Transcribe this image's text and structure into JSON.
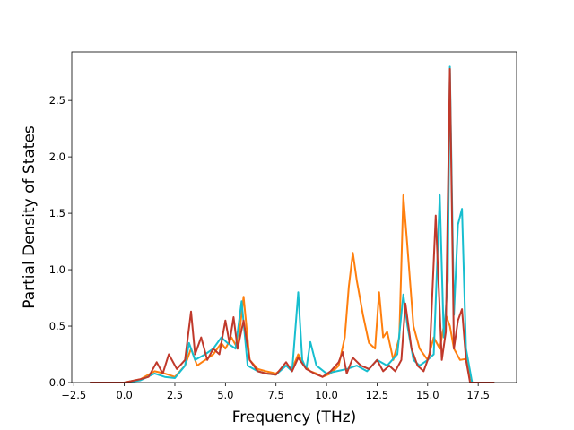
{
  "chart_data": {
    "type": "line",
    "title": "",
    "xlabel": "Frequency (THz)",
    "ylabel": "Partial Density of States",
    "xlim": [
      -2.6,
      19.4
    ],
    "ylim": [
      0.0,
      2.93
    ],
    "xticks": [
      -2.5,
      0.0,
      2.5,
      5.0,
      7.5,
      10.0,
      12.5,
      15.0,
      17.5
    ],
    "xtick_labels": [
      "−2.5",
      "0.0",
      "2.5",
      "5.0",
      "7.5",
      "10.0",
      "12.5",
      "15.0",
      "17.5"
    ],
    "yticks": [
      0.0,
      0.5,
      1.0,
      1.5,
      2.0,
      2.5
    ],
    "ytick_labels": [
      "0.0",
      "0.5",
      "1.0",
      "1.5",
      "2.0",
      "2.5"
    ],
    "grid": false,
    "legend": "none",
    "series": [
      {
        "color": "#ff7f0e",
        "x": [
          -1.7,
          0.0,
          0.8,
          1.5,
          2.0,
          2.5,
          3.0,
          3.3,
          3.6,
          4.0,
          4.4,
          4.8,
          5.0,
          5.3,
          5.6,
          5.9,
          6.2,
          6.6,
          7.0,
          7.5,
          8.0,
          8.3,
          8.6,
          8.9,
          9.2,
          9.5,
          9.8,
          10.2,
          10.6,
          10.9,
          11.1,
          11.3,
          11.5,
          11.8,
          12.1,
          12.4,
          12.6,
          12.8,
          13.0,
          13.3,
          13.6,
          13.8,
          14.0,
          14.3,
          14.6,
          15.0,
          15.3,
          15.6,
          15.9,
          16.1,
          16.3,
          16.6,
          16.9,
          17.2,
          17.6,
          18.3
        ],
        "y": [
          0.0,
          0.0,
          0.03,
          0.1,
          0.08,
          0.05,
          0.15,
          0.3,
          0.15,
          0.2,
          0.25,
          0.35,
          0.3,
          0.4,
          0.3,
          0.76,
          0.2,
          0.12,
          0.1,
          0.08,
          0.15,
          0.12,
          0.25,
          0.15,
          0.1,
          0.08,
          0.05,
          0.08,
          0.15,
          0.4,
          0.85,
          1.15,
          0.9,
          0.6,
          0.35,
          0.3,
          0.8,
          0.4,
          0.45,
          0.2,
          0.4,
          1.66,
          1.2,
          0.5,
          0.3,
          0.2,
          0.4,
          0.3,
          0.6,
          0.5,
          0.3,
          0.2,
          0.21,
          0.0,
          0.0,
          0.0
        ]
      },
      {
        "color": "#17becf",
        "x": [
          -1.7,
          0.0,
          0.8,
          1.5,
          2.0,
          2.5,
          3.0,
          3.2,
          3.5,
          4.0,
          4.4,
          4.8,
          5.1,
          5.5,
          5.8,
          6.1,
          6.6,
          7.0,
          7.5,
          8.0,
          8.3,
          8.6,
          8.8,
          9.0,
          9.2,
          9.5,
          10.0,
          10.5,
          11.0,
          11.5,
          12.0,
          12.5,
          13.0,
          13.5,
          13.8,
          14.0,
          14.3,
          14.6,
          15.0,
          15.3,
          15.6,
          15.8,
          16.0,
          16.1,
          16.3,
          16.5,
          16.7,
          16.9,
          17.2,
          18.3
        ],
        "y": [
          0.0,
          0.0,
          0.02,
          0.08,
          0.05,
          0.04,
          0.15,
          0.35,
          0.2,
          0.25,
          0.3,
          0.4,
          0.35,
          0.3,
          0.72,
          0.15,
          0.1,
          0.08,
          0.07,
          0.15,
          0.1,
          0.8,
          0.2,
          0.12,
          0.36,
          0.15,
          0.08,
          0.1,
          0.12,
          0.15,
          0.1,
          0.2,
          0.15,
          0.25,
          0.78,
          0.5,
          0.2,
          0.15,
          0.2,
          0.25,
          1.66,
          0.4,
          0.9,
          2.8,
          0.6,
          1.4,
          1.54,
          0.3,
          0.0,
          0.0
        ]
      },
      {
        "color": "#c0392b",
        "x": [
          -1.7,
          0.0,
          0.8,
          1.2,
          1.6,
          1.9,
          2.2,
          2.6,
          3.0,
          3.3,
          3.5,
          3.8,
          4.1,
          4.4,
          4.7,
          5.0,
          5.2,
          5.4,
          5.6,
          5.9,
          6.2,
          6.6,
          7.0,
          7.5,
          8.0,
          8.3,
          8.6,
          9.0,
          9.4,
          9.8,
          10.2,
          10.6,
          10.8,
          11.0,
          11.3,
          11.7,
          12.1,
          12.5,
          12.8,
          13.1,
          13.4,
          13.7,
          13.9,
          14.2,
          14.5,
          14.8,
          15.1,
          15.4,
          15.7,
          15.9,
          16.1,
          16.3,
          16.5,
          16.7,
          16.9,
          17.1,
          18.3
        ],
        "y": [
          0.0,
          0.0,
          0.03,
          0.05,
          0.18,
          0.08,
          0.25,
          0.12,
          0.2,
          0.63,
          0.25,
          0.4,
          0.2,
          0.3,
          0.25,
          0.55,
          0.35,
          0.58,
          0.3,
          0.55,
          0.2,
          0.1,
          0.08,
          0.07,
          0.18,
          0.1,
          0.22,
          0.12,
          0.08,
          0.05,
          0.1,
          0.18,
          0.27,
          0.08,
          0.22,
          0.15,
          0.12,
          0.2,
          0.1,
          0.15,
          0.1,
          0.2,
          0.7,
          0.3,
          0.15,
          0.1,
          0.25,
          1.48,
          0.2,
          0.45,
          2.78,
          0.3,
          0.55,
          0.65,
          0.2,
          0.0,
          0.0
        ]
      }
    ]
  }
}
